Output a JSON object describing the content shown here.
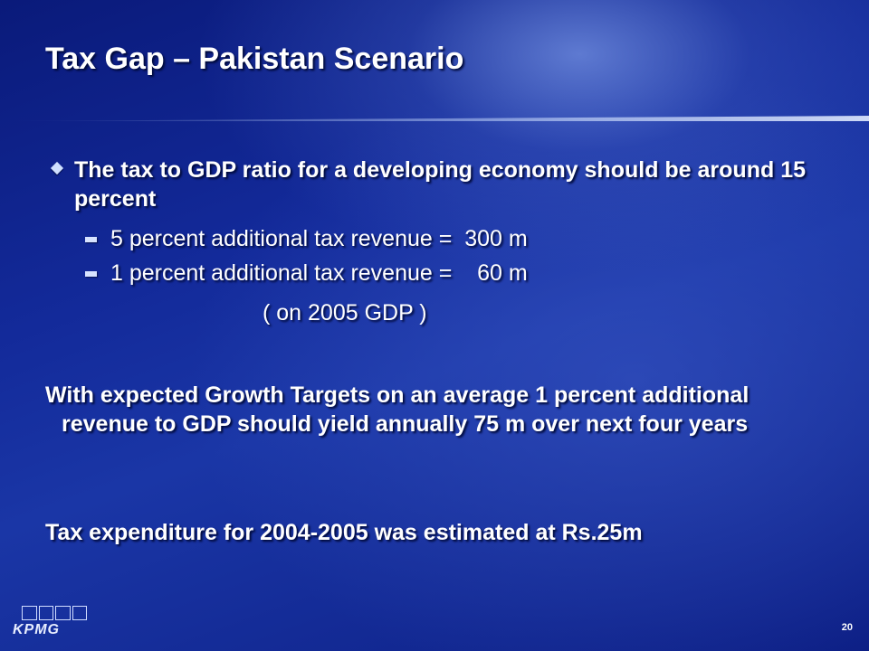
{
  "slide": {
    "title": "Tax Gap – Pakistan Scenario",
    "bullet": "The tax to GDP ratio for a developing economy should be around 15 percent",
    "sub_items": [
      "5 percent additional tax revenue =  300 m",
      "1 percent additional tax revenue =    60 m"
    ],
    "note": "( on 2005 GDP )",
    "paragraph1": "With expected Growth Targets on an average 1 percent additional revenue to GDP should yield annually 75 m over next four years",
    "paragraph2": "Tax expenditure for 2004-2005 was estimated at Rs.25m"
  },
  "footer": {
    "logo_text": "KPMG",
    "page_number": "20"
  }
}
